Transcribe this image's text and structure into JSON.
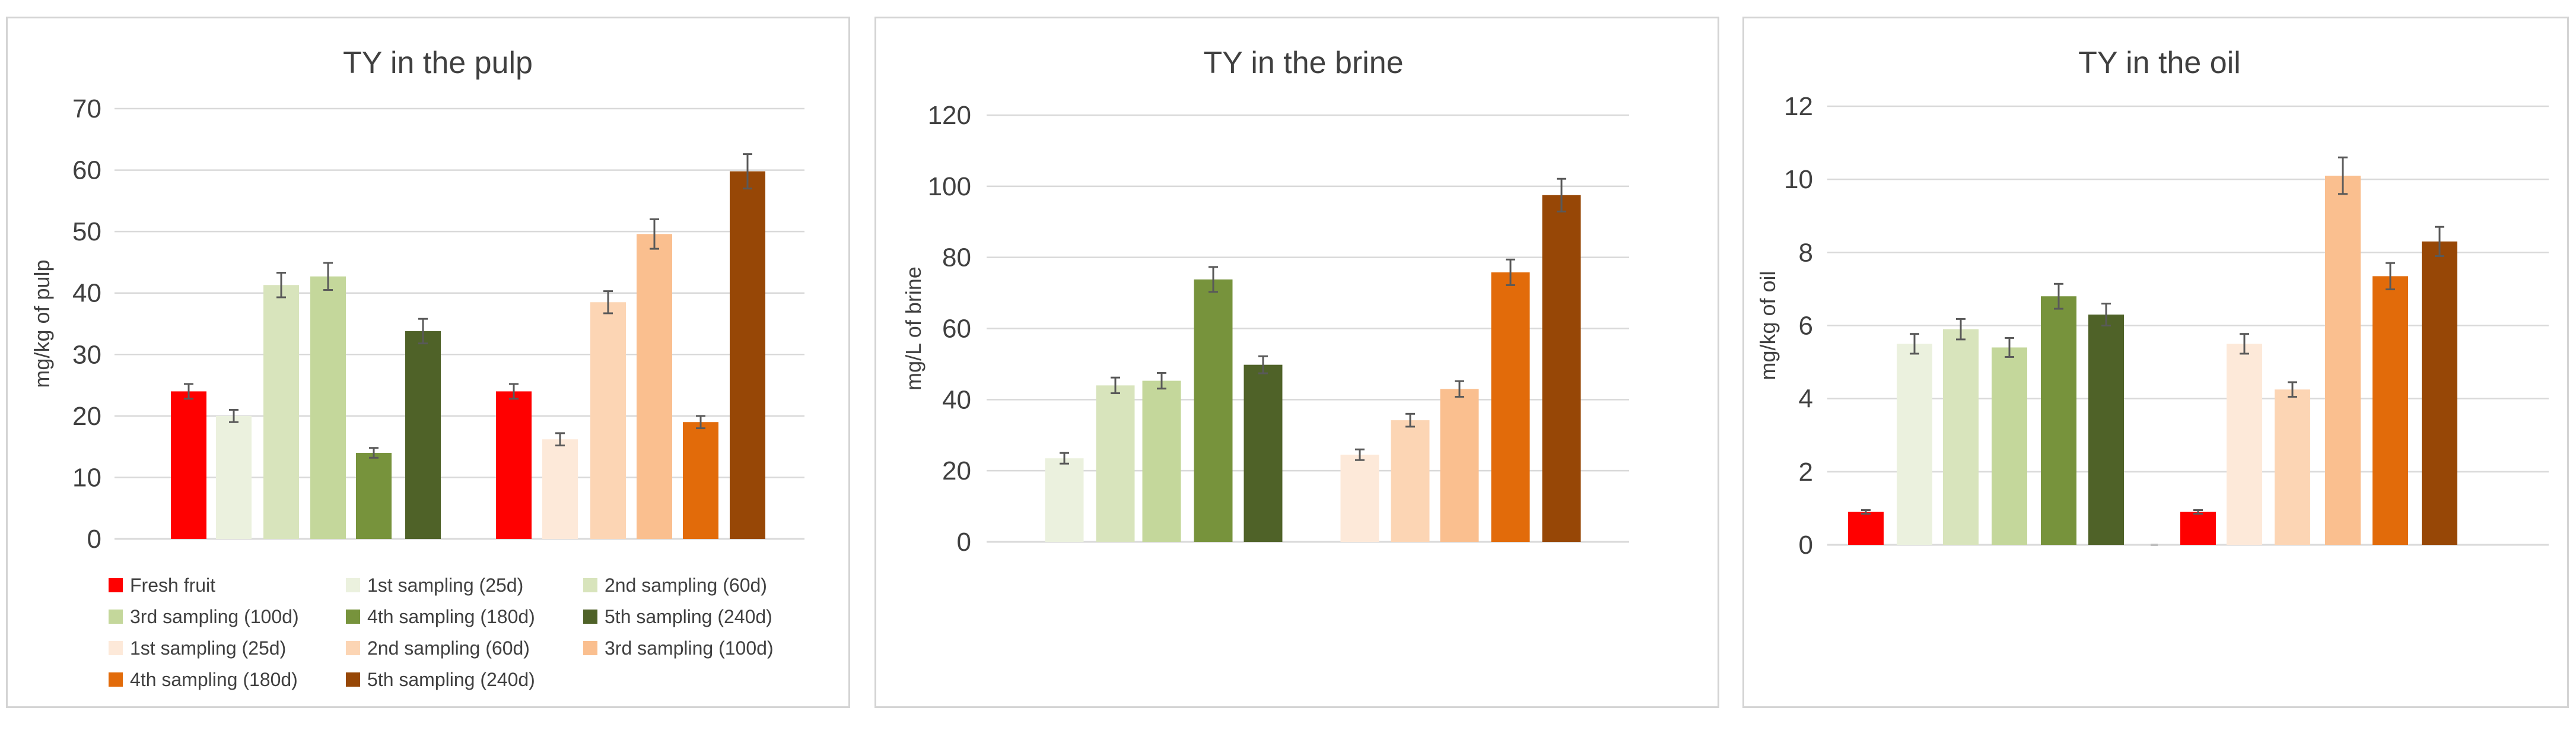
{
  "chart_data": [
    {
      "type": "bar",
      "title": "TY in the pulp",
      "ylabel": "mg/kg of pulp",
      "xlabel": "",
      "ylim": [
        0,
        70
      ],
      "yticks": [
        0,
        10,
        20,
        30,
        40,
        50,
        60,
        70
      ],
      "grid": true,
      "legend_position": "bottom",
      "series": [
        {
          "name": "Fresh fruit",
          "color": "#ff0000",
          "values": [
            24,
            24
          ],
          "errors": [
            1.2,
            1.2
          ]
        },
        {
          "name": "1st sampling (25d)",
          "color": "#ebf1de",
          "values": [
            20,
            null
          ],
          "errors": [
            1.0,
            null
          ]
        },
        {
          "name": "2nd sampling (60d)",
          "color": "#d8e4bc",
          "values": [
            41.3,
            null
          ],
          "errors": [
            2.0,
            null
          ]
        },
        {
          "name": "3rd sampling (100d)",
          "color": "#c4d79b",
          "values": [
            42.7,
            null
          ],
          "errors": [
            2.2,
            null
          ]
        },
        {
          "name": "4th sampling (180d)",
          "color": "#77933c",
          "values": [
            14,
            null
          ],
          "errors": [
            0.8,
            null
          ]
        },
        {
          "name": "5th sampling (240d)",
          "color": "#4f6228",
          "values": [
            33.8,
            null
          ],
          "errors": [
            2.0,
            null
          ]
        },
        {
          "name": "1st sampling (25d)",
          "color": "#fde9d9",
          "values": [
            null,
            16.2
          ],
          "errors": [
            null,
            1.0
          ]
        },
        {
          "name": "2nd sampling (60d)",
          "color": "#fcd5b4",
          "values": [
            null,
            38.5
          ],
          "errors": [
            null,
            1.8
          ]
        },
        {
          "name": "3rd sampling (100d)",
          "color": "#fabf8f",
          "values": [
            null,
            49.6
          ],
          "errors": [
            null,
            2.4
          ]
        },
        {
          "name": "4th sampling (180d)",
          "color": "#e26b0a",
          "values": [
            null,
            19
          ],
          "errors": [
            null,
            1.0
          ]
        },
        {
          "name": "5th sampling (240d)",
          "color": "#974706",
          "values": [
            null,
            59.8
          ],
          "errors": [
            null,
            2.8
          ]
        }
      ]
    },
    {
      "type": "bar",
      "title": "TY in the brine",
      "ylabel": "mg/L of brine",
      "xlabel": "",
      "ylim": [
        0,
        120
      ],
      "yticks": [
        0,
        20,
        40,
        60,
        80,
        100,
        120
      ],
      "grid": true,
      "series": [
        {
          "name": "",
          "color": "#ebf1de",
          "values": [
            23.5,
            null
          ],
          "errors": [
            1.5,
            null
          ]
        },
        {
          "name": "",
          "color": "#d8e4bc",
          "values": [
            44,
            null
          ],
          "errors": [
            2.2,
            null
          ]
        },
        {
          "name": "",
          "color": "#c4d79b",
          "values": [
            45.3,
            null
          ],
          "errors": [
            2.2,
            null
          ]
        },
        {
          "name": "",
          "color": "#77933c",
          "values": [
            73.8,
            null
          ],
          "errors": [
            3.5,
            null
          ]
        },
        {
          "name": "",
          "color": "#4f6228",
          "values": [
            49.8,
            null
          ],
          "errors": [
            2.4,
            null
          ]
        },
        {
          "name": "",
          "color": "#fde9d9",
          "values": [
            null,
            24.5
          ],
          "errors": [
            null,
            1.5
          ]
        },
        {
          "name": "",
          "color": "#fcd5b4",
          "values": [
            null,
            34.2
          ],
          "errors": [
            null,
            1.8
          ]
        },
        {
          "name": "",
          "color": "#fabf8f",
          "values": [
            null,
            43
          ],
          "errors": [
            null,
            2.2
          ]
        },
        {
          "name": "",
          "color": "#e26b0a",
          "values": [
            null,
            75.8
          ],
          "errors": [
            null,
            3.6
          ]
        },
        {
          "name": "",
          "color": "#974706",
          "values": [
            null,
            97.5
          ],
          "errors": [
            null,
            4.6
          ]
        }
      ]
    },
    {
      "type": "bar",
      "title": "TY in the oil",
      "ylabel": "mg/kg of oil",
      "xlabel": "",
      "ylim": [
        0,
        12
      ],
      "yticks": [
        0,
        2,
        4,
        6,
        8,
        10,
        12
      ],
      "grid": true,
      "series": [
        {
          "name": "",
          "color": "#ff0000",
          "values": [
            0.9,
            0.9
          ],
          "errors": [
            0.05,
            0.05
          ]
        },
        {
          "name": "",
          "color": "#ebf1de",
          "values": [
            5.5,
            null
          ],
          "errors": [
            0.27,
            null
          ]
        },
        {
          "name": "",
          "color": "#d8e4bc",
          "values": [
            5.9,
            null
          ],
          "errors": [
            0.28,
            null
          ]
        },
        {
          "name": "",
          "color": "#c4d79b",
          "values": [
            5.4,
            null
          ],
          "errors": [
            0.26,
            null
          ]
        },
        {
          "name": "",
          "color": "#77933c",
          "values": [
            6.8,
            null
          ],
          "errors": [
            0.34,
            null
          ]
        },
        {
          "name": "",
          "color": "#4f6228",
          "values": [
            6.3,
            null
          ],
          "errors": [
            0.3,
            null
          ]
        },
        {
          "name": "",
          "color": "#fde9d9",
          "values": [
            null,
            5.5
          ],
          "errors": [
            null,
            0.27
          ]
        },
        {
          "name": "",
          "color": "#fcd5b4",
          "values": [
            null,
            4.25
          ],
          "errors": [
            null,
            0.2
          ]
        },
        {
          "name": "",
          "color": "#fabf8f",
          "values": [
            null,
            10.1
          ],
          "errors": [
            null,
            0.5
          ]
        },
        {
          "name": "",
          "color": "#e26b0a",
          "values": [
            null,
            7.35
          ],
          "errors": [
            null,
            0.36
          ]
        },
        {
          "name": "",
          "color": "#974706",
          "values": [
            null,
            8.3
          ],
          "errors": [
            null,
            0.4
          ]
        }
      ]
    }
  ]
}
